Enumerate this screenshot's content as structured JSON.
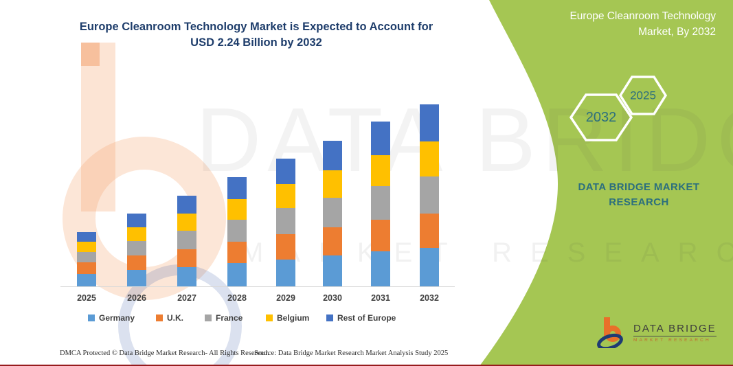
{
  "header": {
    "title_line1": "Europe Cleanroom Technology Market is Expected to Account for",
    "title_line2": "USD 2.24 Billion by 2032"
  },
  "side_panel": {
    "heading": "Europe Cleanroom Technology Market, By 2032",
    "hexagon_large_label": "2032",
    "hexagon_small_label": "2025",
    "brand_text": "DATA BRIDGE MARKET RESEARCH",
    "accent_green": "#A5C653",
    "teal": "#2C6F7D"
  },
  "watermark": {
    "line1": "DATA BRIDGE",
    "line2": "MARKET RESEARCH"
  },
  "logo": {
    "name": "DATA BRIDGE",
    "subtitle": "MARKET RESEARCH"
  },
  "footer": {
    "left": "DMCA Protected © Data Bridge Market Research-  All Rights Reserved.",
    "right": "Source: Data Bridge Market Research  Market Analysis Study 2025"
  },
  "chart_data": {
    "type": "bar",
    "stacked": true,
    "title": "Europe Cleanroom Technology Market is Expected to Account for USD 2.24 Billion by 2032",
    "unit": "USD Billion",
    "categories": [
      "2025",
      "2026",
      "2027",
      "2028",
      "2029",
      "2030",
      "2031",
      "2032"
    ],
    "series": [
      {
        "name": "Germany",
        "color": "#5B9BD5",
        "values": [
          0.15,
          0.2,
          0.24,
          0.29,
          0.33,
          0.38,
          0.43,
          0.47
        ]
      },
      {
        "name": "U.K.",
        "color": "#ED7D31",
        "values": [
          0.14,
          0.18,
          0.22,
          0.26,
          0.31,
          0.35,
          0.39,
          0.42
        ]
      },
      {
        "name": "France",
        "color": "#A5A5A5",
        "values": [
          0.13,
          0.18,
          0.23,
          0.27,
          0.32,
          0.36,
          0.41,
          0.46
        ]
      },
      {
        "name": "Belgium",
        "color": "#FFC000",
        "values": [
          0.13,
          0.17,
          0.21,
          0.25,
          0.3,
          0.34,
          0.38,
          0.43
        ]
      },
      {
        "name": "Rest of Europe",
        "color": "#4472C4",
        "values": [
          0.12,
          0.17,
          0.22,
          0.27,
          0.31,
          0.36,
          0.41,
          0.46
        ]
      }
    ],
    "totals": [
      0.67,
      0.9,
      1.12,
      1.34,
      1.57,
      1.79,
      2.02,
      2.24
    ],
    "ylim": [
      0,
      2.4
    ],
    "grid": false,
    "legend_position": "bottom",
    "y_axis_visible": false
  }
}
